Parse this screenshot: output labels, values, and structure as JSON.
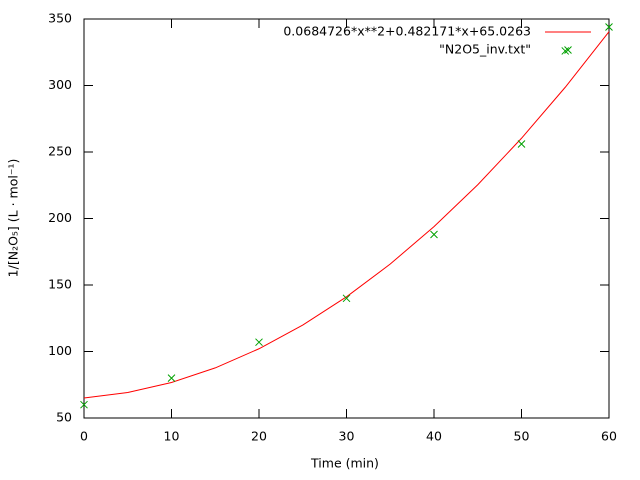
{
  "chart_data": {
    "type": "line",
    "x_label": "Time (min)",
    "y_label": "1/[N₂O₅] (L · mol⁻¹)",
    "xlim": [
      0,
      60
    ],
    "xticks": [
      0,
      10,
      20,
      30,
      40,
      50,
      60
    ],
    "ylim": [
      50,
      350
    ],
    "yticks": [
      50,
      100,
      150,
      200,
      250,
      300,
      350
    ],
    "grid": false,
    "legend": "top-right",
    "series": [
      {
        "name": "0.0684726*x**2+0.482171*x+65.0263",
        "color": "#ff0000",
        "type": "line",
        "x": [
          0,
          5,
          10,
          15,
          20,
          25,
          30,
          35,
          40,
          45,
          50,
          55,
          60
        ],
        "values": [
          65.03,
          69.15,
          76.7,
          87.67,
          102.06,
          119.88,
          141.12,
          165.78,
          193.87,
          225.38,
          260.32,
          298.68,
          340.46
        ]
      },
      {
        "name": "\"N2O5_inv.txt\"",
        "color": "#00a000",
        "type": "scatter",
        "x": [
          0,
          10,
          20,
          30,
          40,
          50,
          55,
          60
        ],
        "values": [
          60,
          80,
          107,
          140,
          188,
          256,
          326,
          344
        ]
      }
    ]
  }
}
